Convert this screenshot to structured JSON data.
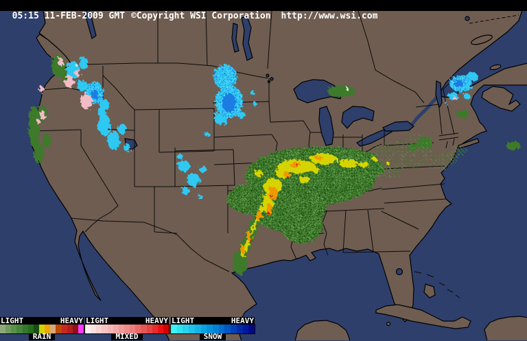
{
  "header": {
    "time": "05:15 11-FEB-2009 GMT",
    "copyright": "©Copyright WSI Corporation",
    "url": "http://www.wsi.com"
  },
  "legend": {
    "groups": [
      {
        "label": "RAIN",
        "min_label": "LIGHT",
        "max_label": "HEAVY",
        "colors": [
          "#8fa87b",
          "#6f9c5c",
          "#5a9149",
          "#46853a",
          "#35782c",
          "#256c1e",
          "#164f12",
          "#d2d200",
          "#f0a400",
          "#d8a878",
          "#c04800",
          "#c82820",
          "#b01e1e",
          "#8c1216",
          "#fa3cfa"
        ]
      },
      {
        "label": "MIXED",
        "min_label": "LIGHT",
        "max_label": "HEAVY",
        "colors": [
          "#fdeeee",
          "#fbe0e0",
          "#f9d2d2",
          "#f7c4c4",
          "#f5b6b6",
          "#f3a8a8",
          "#f19a9a",
          "#ef8c8c",
          "#ed7e7e",
          "#ea6a6a",
          "#e75656",
          "#e44242",
          "#e12e2e",
          "#ee1010",
          "#d60000"
        ]
      },
      {
        "label": "SNOW",
        "min_label": "LIGHT",
        "max_label": "HEAVY",
        "colors": [
          "#3cf2f2",
          "#32e2ee",
          "#28d2ec",
          "#1ec2ea",
          "#14b2e6",
          "#0aa2e2",
          "#0492de",
          "#0082d6",
          "#006cce",
          "#0056c2",
          "#0040b6",
          "#002aaa",
          "#00189e",
          "#000a86"
        ]
      }
    ]
  },
  "colors": {
    "ocean": "#2e3f6b",
    "land": "#6f5d51",
    "bar_background": "#000000",
    "bar_text": "#ffffff",
    "rain_base": "#3c7a2c",
    "rain_dark": "#1c4f14",
    "rain_light": "#74a658",
    "rain_moderate": "#d6d400",
    "rain_heavy": "#f09800",
    "rain_severe": "#c32410",
    "mixed_base": "#f2bcc6",
    "mixed_deep": "#e89aaa",
    "snow_base": "#2fc8f2",
    "snow_light": "#64e4f6",
    "snow_deep": "#1e7ce2"
  }
}
